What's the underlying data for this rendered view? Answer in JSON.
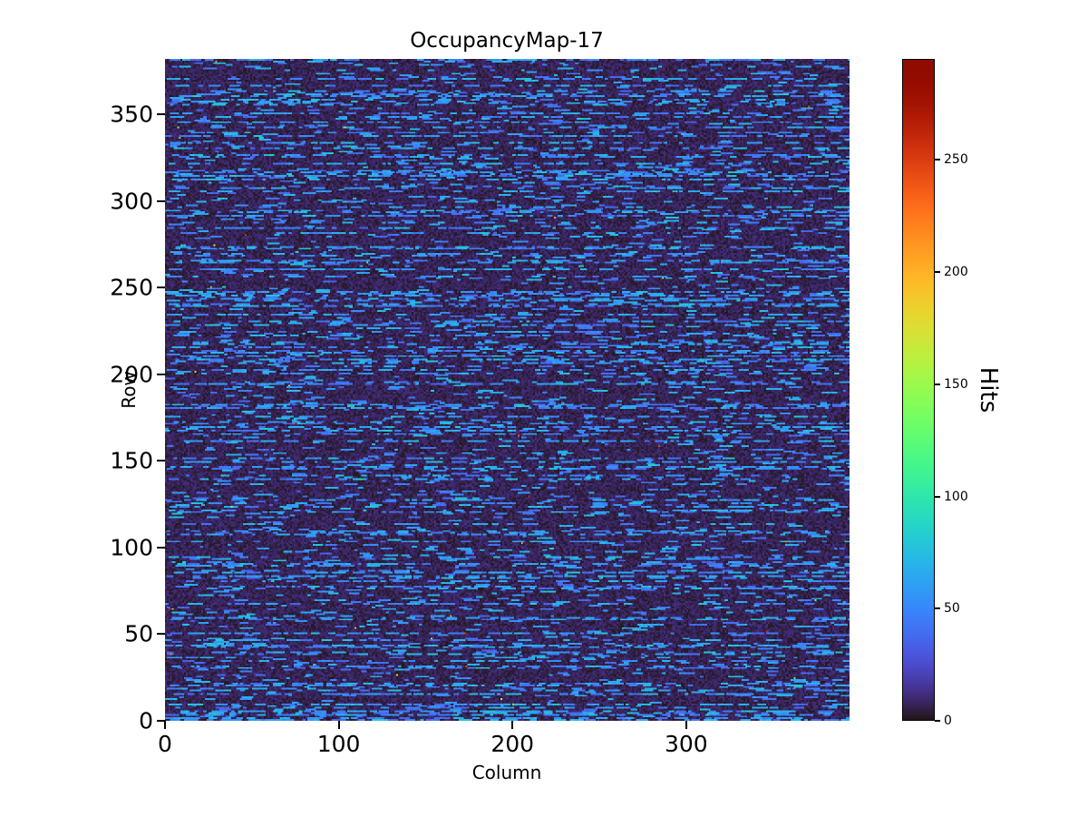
{
  "figure": {
    "background": "#ffffff",
    "text_color": "#000000"
  },
  "chart_data": {
    "type": "heatmap",
    "title": "OccupancyMap-17",
    "xlabel": "Column",
    "ylabel": "Row",
    "x_ticks": [
      0,
      100,
      200,
      300
    ],
    "y_ticks": [
      0,
      50,
      100,
      150,
      200,
      250,
      300,
      350
    ],
    "x_range": [
      0,
      394
    ],
    "y_range": [
      0,
      382
    ],
    "grid": {
      "cols": 394,
      "rows": 382
    },
    "colormap": "turbo",
    "colorbar": {
      "label": "Hits",
      "ticks": [
        0,
        50,
        100,
        150,
        200,
        250
      ],
      "vmin": 0,
      "vmax": 295,
      "orientation": "vertical",
      "position": "right"
    },
    "legend": "none",
    "grid_lines": false,
    "pattern": {
      "description": "Sparse pixel-detector occupancy map: dark near-zero background (dark purple, turbo low end) with broken horizontal dashes of moderate hit counts (~35-75, light blue) on many rows, plus very rare hot pixels up to the 295 maximum (orange/dark red specks).",
      "seed": 17,
      "background_max": 12,
      "dash_value_min": 35,
      "dash_value_max": 75,
      "active_row_fraction": 0.35,
      "active_row_dash_density": 0.12,
      "quiet_row_dash_density": 0.02,
      "dash_length_min": 2,
      "dash_length_max": 9,
      "hot_pixel_fraction": 0.00025,
      "hot_value_min": 120,
      "hot_value_max": 295
    }
  }
}
